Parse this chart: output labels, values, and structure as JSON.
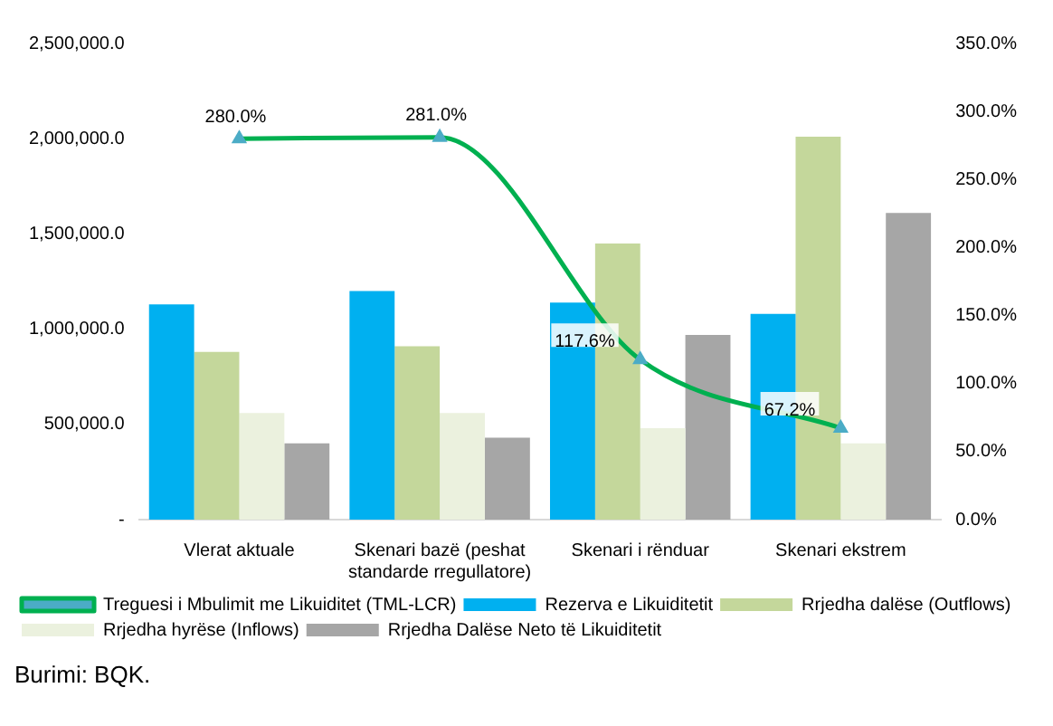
{
  "chart_data": {
    "type": "bar",
    "categories": [
      "Vlerat aktuale",
      "Skenari bazë (peshat standarde rregullatore)",
      "Skenari i rënduar",
      "Skenari ekstrem"
    ],
    "series": [
      {
        "name": "Rezerva e Likuiditetit",
        "color": "#00b0f0",
        "values": [
          1130000,
          1200000,
          1140000,
          1080000
        ]
      },
      {
        "name": "Rrjedha dalëse (Outflows)",
        "color": "#c4d79b",
        "values": [
          880000,
          910000,
          1450000,
          2010000
        ]
      },
      {
        "name": "Rrjedha hyrëse (Inflows)",
        "color": "#ebf1de",
        "values": [
          560000,
          560000,
          480000,
          400000
        ]
      },
      {
        "name": "Rrjedha Dalëse Neto të Likuiditetit",
        "color": "#a6a6a6",
        "values": [
          400000,
          430000,
          970000,
          1610000
        ]
      },
      {
        "name": "Treguesi i Mbulimit me Likuiditet (TML-LCR)",
        "type": "line",
        "axis": "y2",
        "color": "#00b050",
        "marker": "triangle",
        "values": [
          280.0,
          281.0,
          117.6,
          67.2
        ],
        "value_labels": [
          "280.0%",
          "281.0%",
          "117.6%",
          "67.2%"
        ]
      }
    ],
    "ylim": [
      0,
      2500000
    ],
    "yticks": [
      {
        "value": 0,
        "label": "-"
      },
      {
        "value": 500000,
        "label": "500,000.0"
      },
      {
        "value": 1000000,
        "label": "1,000,000.0"
      },
      {
        "value": 1500000,
        "label": "1,500,000.0"
      },
      {
        "value": 2000000,
        "label": "2,000,000.0"
      },
      {
        "value": 2500000,
        "label": "2,500,000.0"
      }
    ],
    "y2lim": [
      0,
      350
    ],
    "y2ticks": [
      {
        "value": 0,
        "label": "0.0%"
      },
      {
        "value": 50,
        "label": "50.0%"
      },
      {
        "value": 100,
        "label": "100.0%"
      },
      {
        "value": 150,
        "label": "150.0%"
      },
      {
        "value": 200,
        "label": "200.0%"
      },
      {
        "value": 250,
        "label": "250.0%"
      },
      {
        "value": 300,
        "label": "300.0%"
      },
      {
        "value": 350,
        "label": "350.0%"
      }
    ],
    "grid": false,
    "legend": "bottom",
    "annotations": [
      "Burimi: BQK."
    ]
  }
}
